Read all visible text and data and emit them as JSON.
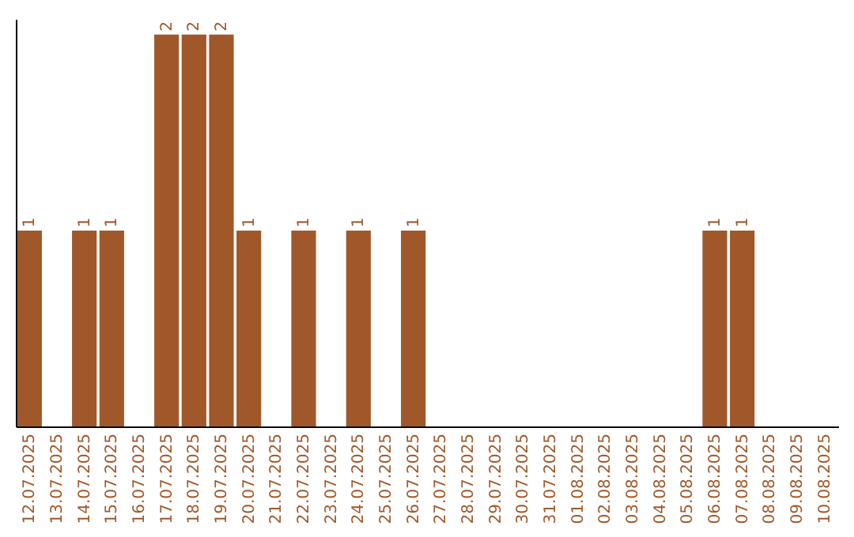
{
  "chart_data": {
    "type": "bar",
    "categories": [
      "12.07.2025",
      "13.07.2025",
      "14.07.2025",
      "15.07.2025",
      "16.07.2025",
      "17.07.2025",
      "18.07.2025",
      "19.07.2025",
      "20.07.2025",
      "21.07.2025",
      "22.07.2025",
      "23.07.2025",
      "24.07.2025",
      "25.07.2025",
      "26.07.2025",
      "27.07.2025",
      "28.07.2025",
      "29.07.2025",
      "30.07.2025",
      "31.07.2025",
      "01.08.2025",
      "02.08.2025",
      "03.08.2025",
      "04.08.2025",
      "05.08.2025",
      "06.08.2025",
      "07.08.2025",
      "08.08.2025",
      "09.08.2025",
      "10.08.2025"
    ],
    "values": [
      1,
      0,
      1,
      1,
      0,
      2,
      2,
      2,
      1,
      0,
      1,
      0,
      1,
      0,
      1,
      0,
      0,
      0,
      0,
      0,
      0,
      0,
      0,
      0,
      0,
      1,
      1,
      0,
      0,
      0
    ],
    "value_labels": [
      "1",
      null,
      "1",
      "1",
      null,
      "2",
      "2",
      "2",
      "1",
      null,
      "1",
      null,
      "1",
      null,
      "1",
      null,
      null,
      null,
      null,
      null,
      null,
      null,
      null,
      null,
      null,
      "1",
      "1",
      null,
      null,
      null
    ],
    "color": "#a0582a",
    "ylim": [
      0,
      2.08
    ],
    "tick_labels": "x",
    "grid": false
  }
}
